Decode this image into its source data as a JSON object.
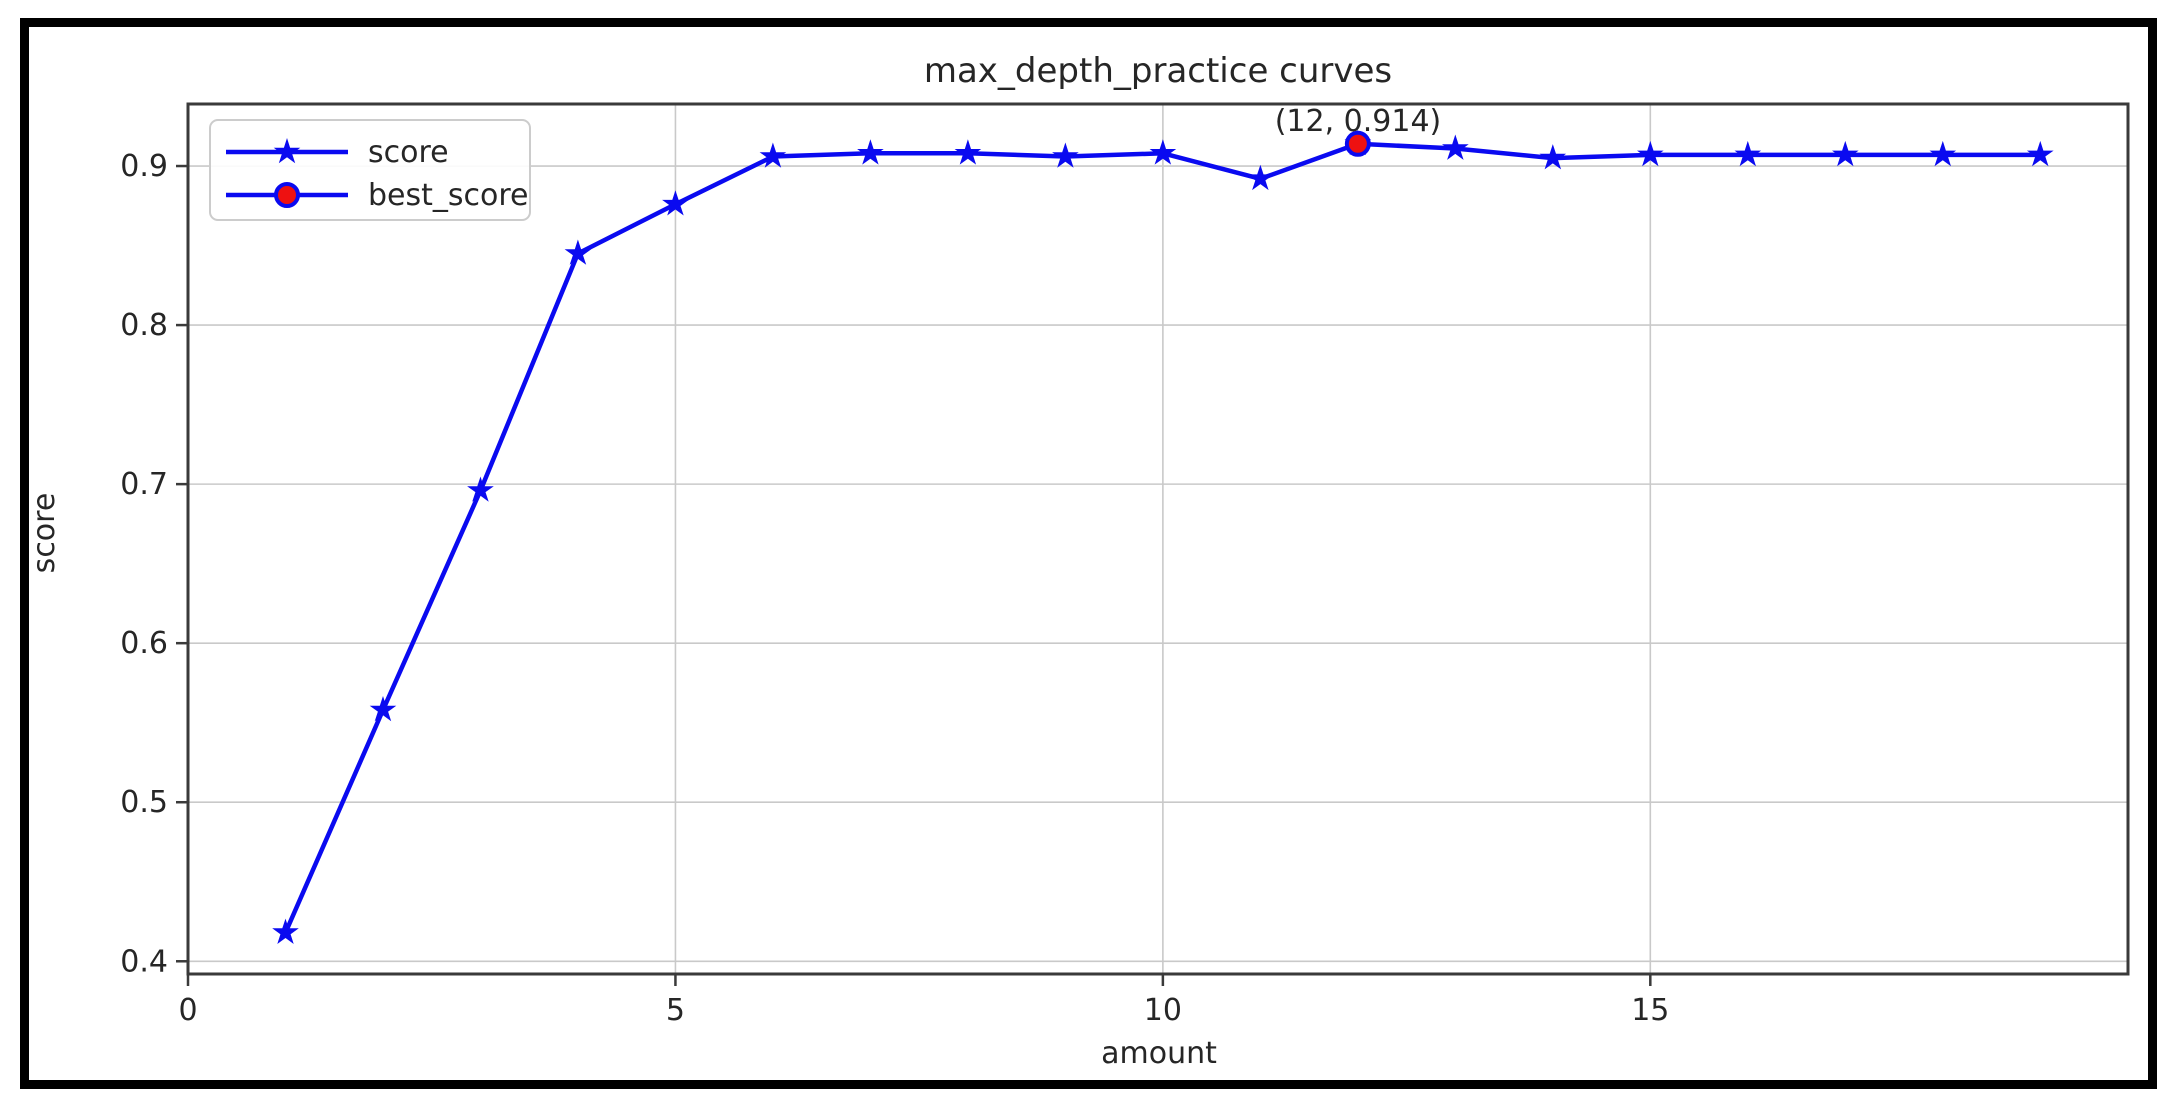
{
  "figure": {
    "background": "#ffffff",
    "border_color": "#000000"
  },
  "chart_data": {
    "type": "line",
    "title": "max_depth_practice curves",
    "xlabel": "amount",
    "ylabel": "score",
    "x": [
      1,
      2,
      3,
      4,
      5,
      6,
      7,
      8,
      9,
      10,
      11,
      12,
      13,
      14,
      15,
      16,
      17,
      18,
      19
    ],
    "series": [
      {
        "name": "score",
        "marker": "star",
        "color": "#0a0af0",
        "values": [
          0.418,
          0.558,
          0.696,
          0.845,
          0.876,
          0.906,
          0.908,
          0.908,
          0.906,
          0.908,
          0.892,
          0.914,
          0.911,
          0.905,
          0.907,
          0.907,
          0.907,
          0.907,
          0.907
        ]
      }
    ],
    "best_point": {
      "name": "best_score",
      "x": 12,
      "y": 0.914,
      "label": "(12, 0.914)",
      "fill": "#ee1111",
      "edge": "#0a0af0"
    },
    "xticks": [
      0,
      5,
      10,
      15
    ],
    "yticks": [
      0.4,
      0.5,
      0.6,
      0.7,
      0.8,
      0.9
    ],
    "xlim": [
      0,
      19.9
    ],
    "ylim": [
      0.392,
      0.939
    ],
    "grid": true,
    "grid_color": "#c9c9c9",
    "axis_color": "#3a3a3a",
    "text_color": "#262626",
    "legend": {
      "position": "upper left",
      "entries": [
        {
          "label": "score",
          "marker": "star",
          "marker_fill": "#0a0af0",
          "marker_edge": "#0a0af0",
          "line_color": "#0a0af0"
        },
        {
          "label": "best_score",
          "marker": "circle",
          "marker_fill": "#ee1111",
          "marker_edge": "#0a0af0",
          "line_color": "#0a0af0"
        }
      ]
    }
  }
}
